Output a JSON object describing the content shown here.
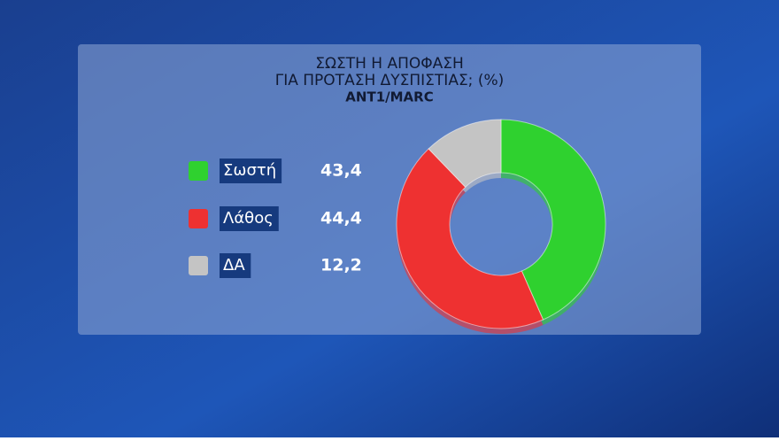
{
  "chart_data": {
    "type": "donut",
    "title": [
      "ΣΩΣΤΗ Η ΑΠΟΦΑΣΗ",
      "ΓΙΑ ΠΡΟΤΑΣΗ ΔΥΣΠΙΣΤΙΑΣ; (%)"
    ],
    "subtitle": "ANT1/MARC",
    "categories": [
      "Σωστή",
      "Λάθος",
      "ΔΑ"
    ],
    "values": [
      43.4,
      44.4,
      12.2
    ],
    "value_labels": [
      "43,4",
      "44,4",
      "12,2"
    ],
    "colors": [
      "#2fd12f",
      "#ee3131",
      "#c4c4c4"
    ]
  }
}
